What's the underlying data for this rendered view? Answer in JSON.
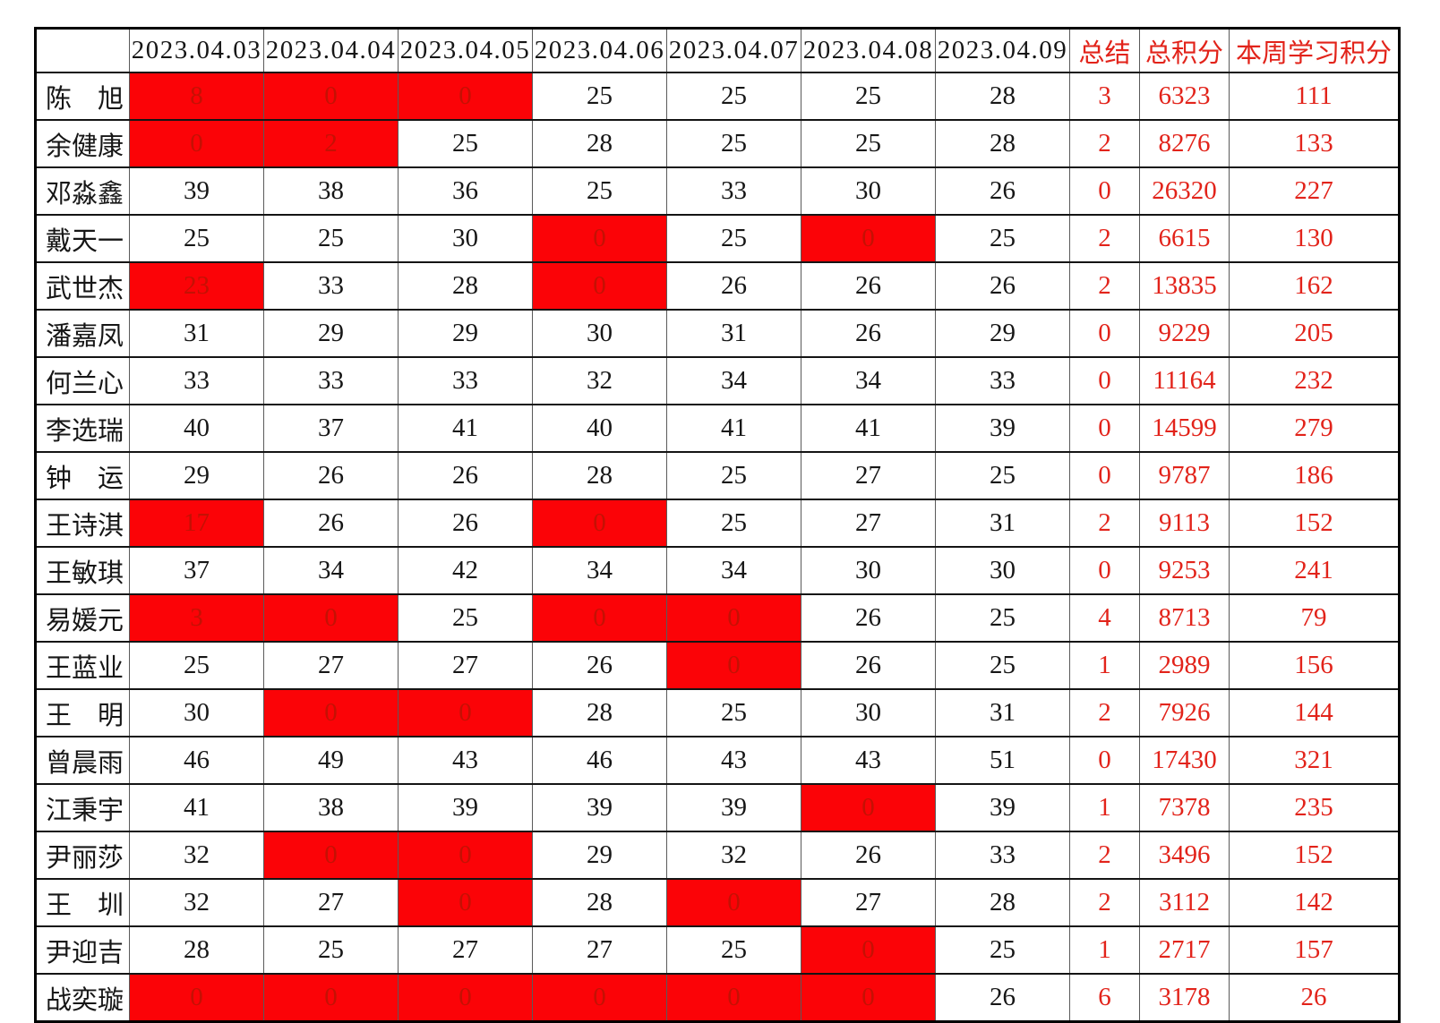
{
  "colors": {
    "highlight_background": "#fb0307",
    "highlight_text": "#c41104",
    "summary_text": "#e2231a",
    "body_text": "#161616"
  },
  "table": {
    "columns": [
      "",
      "2023.04.03",
      "2023.04.04",
      "2023.04.05",
      "2023.04.06",
      "2023.04.07",
      "2023.04.08",
      "2023.04.09",
      "总结",
      "总积分",
      "本周学习积分"
    ],
    "rows": [
      {
        "name": "陈　旭",
        "days": [
          {
            "v": "8",
            "hl": true
          },
          {
            "v": "0",
            "hl": true
          },
          {
            "v": "0",
            "hl": true
          },
          {
            "v": "25",
            "hl": false
          },
          {
            "v": "25",
            "hl": false
          },
          {
            "v": "25",
            "hl": false
          },
          {
            "v": "28",
            "hl": false
          }
        ],
        "summary": "3",
        "total": "6323",
        "week": "111"
      },
      {
        "name": "余健康",
        "days": [
          {
            "v": "0",
            "hl": true
          },
          {
            "v": "2",
            "hl": true
          },
          {
            "v": "25",
            "hl": false
          },
          {
            "v": "28",
            "hl": false
          },
          {
            "v": "25",
            "hl": false
          },
          {
            "v": "25",
            "hl": false
          },
          {
            "v": "28",
            "hl": false
          }
        ],
        "summary": "2",
        "total": "8276",
        "week": "133"
      },
      {
        "name": "邓淼鑫",
        "days": [
          {
            "v": "39",
            "hl": false
          },
          {
            "v": "38",
            "hl": false
          },
          {
            "v": "36",
            "hl": false
          },
          {
            "v": "25",
            "hl": false
          },
          {
            "v": "33",
            "hl": false
          },
          {
            "v": "30",
            "hl": false
          },
          {
            "v": "26",
            "hl": false
          }
        ],
        "summary": "0",
        "total": "26320",
        "week": "227"
      },
      {
        "name": "戴天一",
        "days": [
          {
            "v": "25",
            "hl": false
          },
          {
            "v": "25",
            "hl": false
          },
          {
            "v": "30",
            "hl": false
          },
          {
            "v": "0",
            "hl": true
          },
          {
            "v": "25",
            "hl": false
          },
          {
            "v": "0",
            "hl": true
          },
          {
            "v": "25",
            "hl": false
          }
        ],
        "summary": "2",
        "total": "6615",
        "week": "130"
      },
      {
        "name": "武世杰",
        "days": [
          {
            "v": "23",
            "hl": true
          },
          {
            "v": "33",
            "hl": false
          },
          {
            "v": "28",
            "hl": false
          },
          {
            "v": "0",
            "hl": true
          },
          {
            "v": "26",
            "hl": false
          },
          {
            "v": "26",
            "hl": false
          },
          {
            "v": "26",
            "hl": false
          }
        ],
        "summary": "2",
        "total": "13835",
        "week": "162"
      },
      {
        "name": "潘嘉凤",
        "days": [
          {
            "v": "31",
            "hl": false
          },
          {
            "v": "29",
            "hl": false
          },
          {
            "v": "29",
            "hl": false
          },
          {
            "v": "30",
            "hl": false
          },
          {
            "v": "31",
            "hl": false
          },
          {
            "v": "26",
            "hl": false
          },
          {
            "v": "29",
            "hl": false
          }
        ],
        "summary": "0",
        "total": "9229",
        "week": "205"
      },
      {
        "name": "何兰心",
        "days": [
          {
            "v": "33",
            "hl": false
          },
          {
            "v": "33",
            "hl": false
          },
          {
            "v": "33",
            "hl": false
          },
          {
            "v": "32",
            "hl": false
          },
          {
            "v": "34",
            "hl": false
          },
          {
            "v": "34",
            "hl": false
          },
          {
            "v": "33",
            "hl": false
          }
        ],
        "summary": "0",
        "total": "11164",
        "week": "232"
      },
      {
        "name": "李选瑞",
        "days": [
          {
            "v": "40",
            "hl": false
          },
          {
            "v": "37",
            "hl": false
          },
          {
            "v": "41",
            "hl": false
          },
          {
            "v": "40",
            "hl": false
          },
          {
            "v": "41",
            "hl": false
          },
          {
            "v": "41",
            "hl": false
          },
          {
            "v": "39",
            "hl": false
          }
        ],
        "summary": "0",
        "total": "14599",
        "week": "279"
      },
      {
        "name": "钟　运",
        "days": [
          {
            "v": "29",
            "hl": false
          },
          {
            "v": "26",
            "hl": false
          },
          {
            "v": "26",
            "hl": false
          },
          {
            "v": "28",
            "hl": false
          },
          {
            "v": "25",
            "hl": false
          },
          {
            "v": "27",
            "hl": false
          },
          {
            "v": "25",
            "hl": false
          }
        ],
        "summary": "0",
        "total": "9787",
        "week": "186"
      },
      {
        "name": "王诗淇",
        "days": [
          {
            "v": "17",
            "hl": true
          },
          {
            "v": "26",
            "hl": false
          },
          {
            "v": "26",
            "hl": false
          },
          {
            "v": "0",
            "hl": true
          },
          {
            "v": "25",
            "hl": false
          },
          {
            "v": "27",
            "hl": false
          },
          {
            "v": "31",
            "hl": false
          }
        ],
        "summary": "2",
        "total": "9113",
        "week": "152"
      },
      {
        "name": "王敏琪",
        "days": [
          {
            "v": "37",
            "hl": false
          },
          {
            "v": "34",
            "hl": false
          },
          {
            "v": "42",
            "hl": false
          },
          {
            "v": "34",
            "hl": false
          },
          {
            "v": "34",
            "hl": false
          },
          {
            "v": "30",
            "hl": false
          },
          {
            "v": "30",
            "hl": false
          }
        ],
        "summary": "0",
        "total": "9253",
        "week": "241"
      },
      {
        "name": "易媛元",
        "days": [
          {
            "v": "3",
            "hl": true
          },
          {
            "v": "0",
            "hl": true
          },
          {
            "v": "25",
            "hl": false
          },
          {
            "v": "0",
            "hl": true
          },
          {
            "v": "0",
            "hl": true
          },
          {
            "v": "26",
            "hl": false
          },
          {
            "v": "25",
            "hl": false
          }
        ],
        "summary": "4",
        "total": "8713",
        "week": "79"
      },
      {
        "name": "王蓝业",
        "days": [
          {
            "v": "25",
            "hl": false
          },
          {
            "v": "27",
            "hl": false
          },
          {
            "v": "27",
            "hl": false
          },
          {
            "v": "26",
            "hl": false
          },
          {
            "v": "0",
            "hl": true
          },
          {
            "v": "26",
            "hl": false
          },
          {
            "v": "25",
            "hl": false
          }
        ],
        "summary": "1",
        "total": "2989",
        "week": "156"
      },
      {
        "name": "王　明",
        "days": [
          {
            "v": "30",
            "hl": false
          },
          {
            "v": "0",
            "hl": true
          },
          {
            "v": "0",
            "hl": true
          },
          {
            "v": "28",
            "hl": false
          },
          {
            "v": "25",
            "hl": false
          },
          {
            "v": "30",
            "hl": false
          },
          {
            "v": "31",
            "hl": false
          }
        ],
        "summary": "2",
        "total": "7926",
        "week": "144"
      },
      {
        "name": "曾晨雨",
        "days": [
          {
            "v": "46",
            "hl": false
          },
          {
            "v": "49",
            "hl": false
          },
          {
            "v": "43",
            "hl": false
          },
          {
            "v": "46",
            "hl": false
          },
          {
            "v": "43",
            "hl": false
          },
          {
            "v": "43",
            "hl": false
          },
          {
            "v": "51",
            "hl": false
          }
        ],
        "summary": "0",
        "total": "17430",
        "week": "321"
      },
      {
        "name": "江秉宇",
        "days": [
          {
            "v": "41",
            "hl": false
          },
          {
            "v": "38",
            "hl": false
          },
          {
            "v": "39",
            "hl": false
          },
          {
            "v": "39",
            "hl": false
          },
          {
            "v": "39",
            "hl": false
          },
          {
            "v": "0",
            "hl": true
          },
          {
            "v": "39",
            "hl": false
          }
        ],
        "summary": "1",
        "total": "7378",
        "week": "235"
      },
      {
        "name": "尹丽莎",
        "days": [
          {
            "v": "32",
            "hl": false
          },
          {
            "v": "0",
            "hl": true
          },
          {
            "v": "0",
            "hl": true
          },
          {
            "v": "29",
            "hl": false
          },
          {
            "v": "32",
            "hl": false
          },
          {
            "v": "26",
            "hl": false
          },
          {
            "v": "33",
            "hl": false
          }
        ],
        "summary": "2",
        "total": "3496",
        "week": "152"
      },
      {
        "name": "王　圳",
        "days": [
          {
            "v": "32",
            "hl": false
          },
          {
            "v": "27",
            "hl": false
          },
          {
            "v": "0",
            "hl": true
          },
          {
            "v": "28",
            "hl": false
          },
          {
            "v": "0",
            "hl": true
          },
          {
            "v": "27",
            "hl": false
          },
          {
            "v": "28",
            "hl": false
          }
        ],
        "summary": "2",
        "total": "3112",
        "week": "142"
      },
      {
        "name": "尹迎吉",
        "days": [
          {
            "v": "28",
            "hl": false
          },
          {
            "v": "25",
            "hl": false
          },
          {
            "v": "27",
            "hl": false
          },
          {
            "v": "27",
            "hl": false
          },
          {
            "v": "25",
            "hl": false
          },
          {
            "v": "0",
            "hl": true
          },
          {
            "v": "25",
            "hl": false
          }
        ],
        "summary": "1",
        "total": "2717",
        "week": "157"
      },
      {
        "name": "战奕璇",
        "days": [
          {
            "v": "0",
            "hl": true
          },
          {
            "v": "0",
            "hl": true
          },
          {
            "v": "0",
            "hl": true
          },
          {
            "v": "0",
            "hl": true
          },
          {
            "v": "0",
            "hl": true
          },
          {
            "v": "0",
            "hl": true
          },
          {
            "v": "26",
            "hl": false
          }
        ],
        "summary": "6",
        "total": "3178",
        "week": "26"
      }
    ]
  }
}
